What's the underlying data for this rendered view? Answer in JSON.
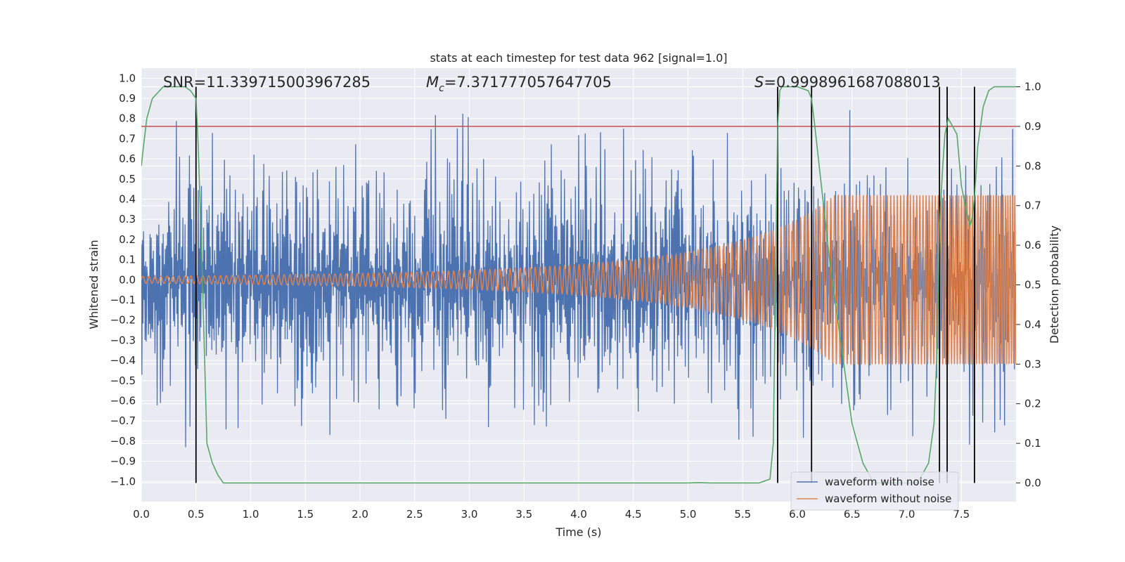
{
  "chart_data": {
    "type": "line",
    "title": "stats at each timestep for test data 962 [signal=1.0]",
    "xlabel": "Time (s)",
    "ylabel": "Whitened strain",
    "y2label": "Detection probability",
    "xlim": [
      0.0,
      8.0
    ],
    "ylim": [
      -1.1,
      1.05
    ],
    "y2lim": [
      -0.047,
      1.047
    ],
    "x_ticks": [
      0.0,
      0.5,
      1.0,
      1.5,
      2.0,
      2.5,
      3.0,
      3.5,
      4.0,
      4.5,
      5.0,
      5.5,
      6.0,
      6.5,
      7.0,
      7.5
    ],
    "x_tick_labels": [
      "0.0",
      "0.5",
      "1.0",
      "1.5",
      "2.0",
      "2.5",
      "3.0",
      "3.5",
      "4.0",
      "4.5",
      "5.0",
      "5.5",
      "6.0",
      "6.5",
      "7.0",
      "7.5"
    ],
    "y_ticks": [
      -1.0,
      -0.9,
      -0.8,
      -0.7,
      -0.6,
      -0.5,
      -0.4,
      -0.3,
      -0.2,
      -0.1,
      0.0,
      0.1,
      0.2,
      0.3,
      0.4,
      0.5,
      0.6,
      0.7,
      0.8,
      0.9,
      1.0
    ],
    "y_tick_labels": [
      "−1.0",
      "−0.9",
      "−0.8",
      "−0.7",
      "−0.6",
      "−0.5",
      "−0.4",
      "−0.3",
      "−0.2",
      "−0.1",
      "0.0",
      "0.1",
      "0.2",
      "0.3",
      "0.4",
      "0.5",
      "0.6",
      "0.7",
      "0.8",
      "0.9",
      "1.0"
    ],
    "y2_ticks": [
      0.0,
      0.1,
      0.2,
      0.3,
      0.4,
      0.5,
      0.6,
      0.7,
      0.8,
      0.9,
      1.0
    ],
    "y2_tick_labels": [
      "0.0",
      "0.1",
      "0.2",
      "0.3",
      "0.4",
      "0.5",
      "0.6",
      "0.7",
      "0.8",
      "0.9",
      "1.0"
    ],
    "annotations": {
      "snr": "SNR=11.339715003967285",
      "mc_symbol": "M",
      "mc_sub": "c",
      "mc_value": "=7.371777057647705",
      "s_symbol": "S",
      "s_value": "=0.9998961687088013"
    },
    "threshold_y2": 0.9,
    "detection_lines_x": [
      0.5,
      5.82,
      6.13,
      7.3,
      7.37,
      7.62
    ],
    "series": [
      {
        "name": "waveform with noise",
        "color": "#4c72b0",
        "noise": {
          "base_amplitude": 0.38,
          "max_amplitude": 0.95,
          "max_negative": -0.83,
          "sample_spacing_s": 0.005
        }
      },
      {
        "name": "waveform without noise",
        "color": "#dd8452",
        "chirp": {
          "start_amplitude": 0.017,
          "end_amplitude": 0.42,
          "start_frequency_hz": 18,
          "end_frequency_hz": 60,
          "coalescence_time_s": 8.6
        }
      },
      {
        "name": "detection probability",
        "color": "#55a868",
        "axis": "y2",
        "x": [
          0.0,
          0.02,
          0.05,
          0.1,
          0.15,
          0.2,
          0.3,
          0.4,
          0.45,
          0.5,
          0.52,
          0.55,
          0.58,
          0.6,
          0.62,
          0.65,
          0.7,
          0.75,
          0.8,
          1.0,
          2.0,
          3.0,
          4.0,
          5.0,
          5.1,
          5.2,
          5.5,
          5.6,
          5.65,
          5.7,
          5.75,
          5.78,
          5.8,
          5.82,
          5.84,
          5.86,
          5.9,
          6.0,
          6.1,
          6.13,
          6.16,
          6.2,
          6.3,
          6.4,
          6.5,
          6.6,
          6.7,
          6.8,
          7.0,
          7.1,
          7.2,
          7.25,
          7.28,
          7.3,
          7.33,
          7.35,
          7.38,
          7.42,
          7.46,
          7.5,
          7.55,
          7.58,
          7.6,
          7.62,
          7.65,
          7.7,
          7.75,
          7.8,
          7.9,
          8.0
        ],
        "values": [
          0.8,
          0.85,
          0.92,
          0.97,
          0.985,
          1.0,
          1.0,
          1.0,
          0.99,
          0.97,
          0.85,
          0.6,
          0.3,
          0.1,
          0.08,
          0.05,
          0.02,
          0.0,
          0.0,
          0.0,
          0.0,
          0.0,
          0.0,
          0.0,
          0.001,
          0.0,
          0.0,
          0.0,
          0.0,
          0.005,
          0.01,
          0.1,
          0.5,
          0.9,
          0.99,
          1.0,
          1.0,
          1.0,
          0.99,
          0.97,
          0.9,
          0.8,
          0.55,
          0.35,
          0.15,
          0.05,
          0.0,
          0.0,
          0.0,
          0.0,
          0.05,
          0.15,
          0.35,
          0.65,
          0.8,
          0.88,
          0.92,
          0.9,
          0.88,
          0.75,
          0.68,
          0.65,
          0.67,
          0.72,
          0.85,
          0.95,
          0.99,
          1.0,
          1.0,
          1.0
        ]
      }
    ],
    "legend": {
      "position": "lower-right",
      "entries": [
        "waveform with noise",
        "waveform without noise"
      ]
    },
    "colors": {
      "background": "#eaeaf2",
      "grid": "#ffffff",
      "threshold": "#c44e52",
      "detection_lines": "#000000"
    }
  }
}
